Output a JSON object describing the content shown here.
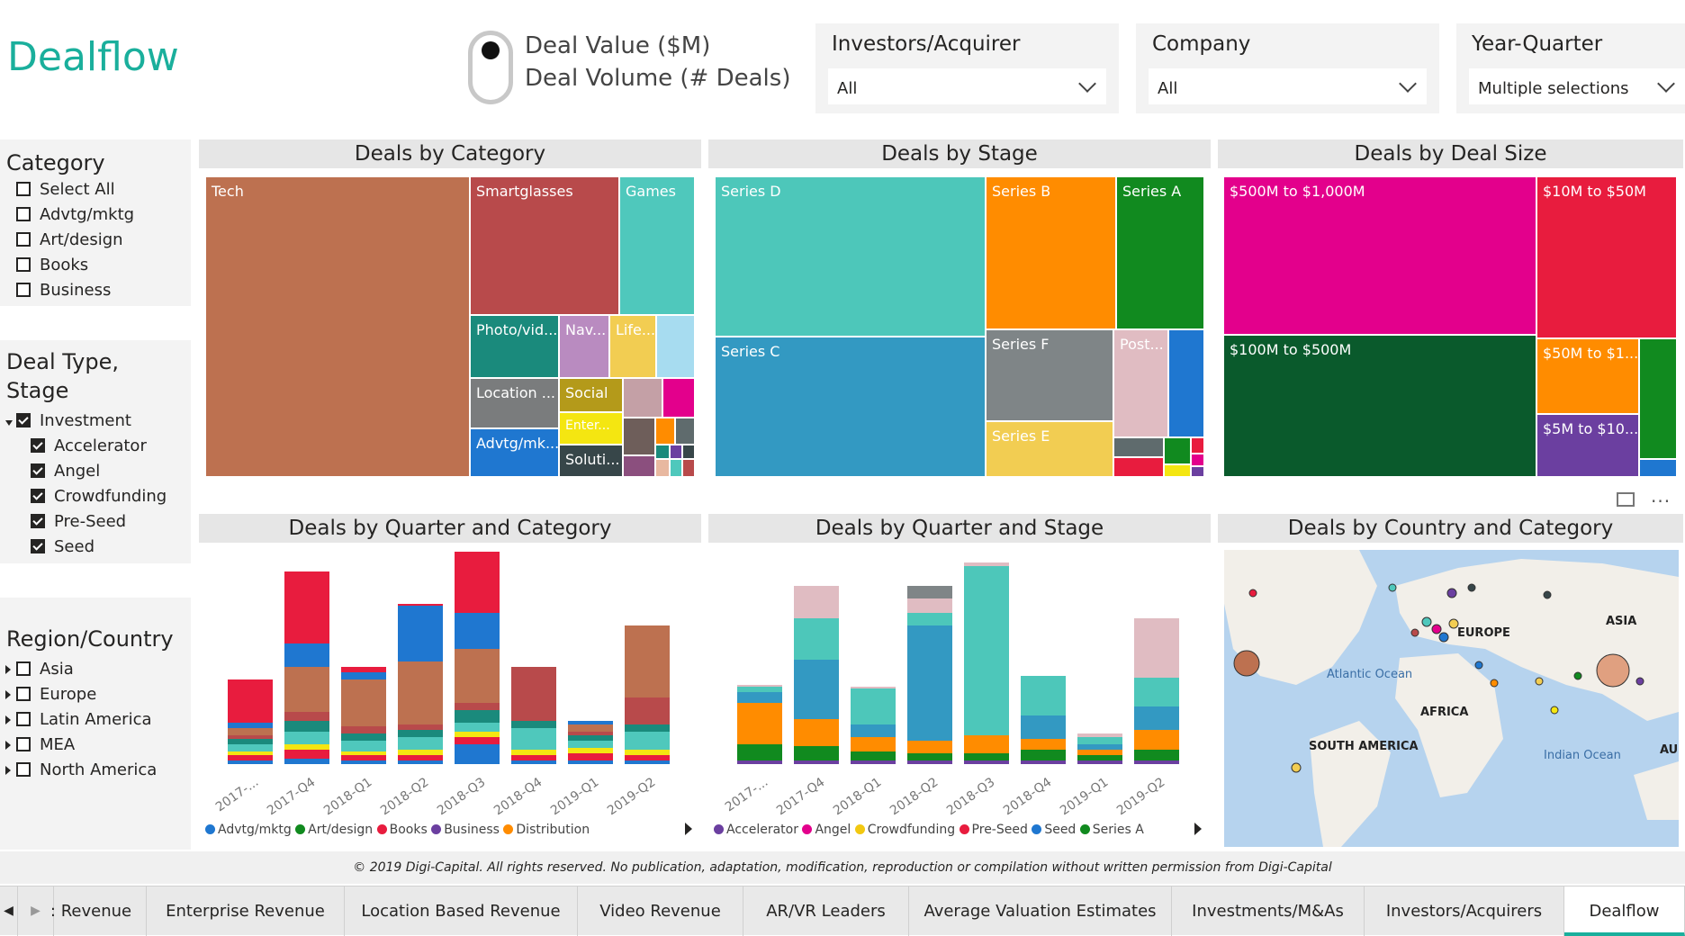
{
  "title": "Dealflow",
  "toggle": {
    "option1": "Deal Value ($M)",
    "option2": "Deal Volume (# Deals)"
  },
  "slicers": [
    {
      "title": "Investors/Acquirer",
      "value": "All"
    },
    {
      "title": "Company",
      "value": "All"
    },
    {
      "title": "Year-Quarter",
      "value": "Multiple selections"
    }
  ],
  "category_panel": {
    "title": "Category",
    "items": [
      "Select All",
      "Advtg/mktg",
      "Art/design",
      "Books",
      "Business"
    ]
  },
  "dealtype_panel": {
    "title_line1": "Deal Type,",
    "title_line2": "Stage",
    "parent": "Investment",
    "items": [
      "Accelerator",
      "Angel",
      "Crowdfunding",
      "Pre-Seed",
      "Seed"
    ]
  },
  "region_panel": {
    "title": "Region/Country",
    "items": [
      "Asia",
      "Europe",
      "Latin America",
      "MEA",
      "North America"
    ]
  },
  "visuals": {
    "deals_by_category": {
      "title": "Deals by Category",
      "labels": [
        "Tech",
        "Smartglasses",
        "Games",
        "Photo/vid...",
        "Nav...",
        "Life...",
        "Location ...",
        "Social",
        "Advtg/mk...",
        "Enter...",
        "Soluti..."
      ]
    },
    "deals_by_stage": {
      "title": "Deals by Stage",
      "labels": [
        "Series D",
        "Series B",
        "Series A",
        "Series C",
        "Series F",
        "Post...",
        "Series E"
      ]
    },
    "deals_by_size": {
      "title": "Deals by Deal Size",
      "labels": [
        "$500M to $1,000M",
        "$10M to $50M",
        "$100M to $500M",
        "$50M to $1...",
        "$5M to $10..."
      ]
    },
    "quarter_category": {
      "title": "Deals by Quarter and Category",
      "quarters": [
        "2017-...",
        "2017-Q4",
        "2018-Q1",
        "2018-Q2",
        "2018-Q3",
        "2018-Q4",
        "2019-Q1",
        "2019-Q2"
      ],
      "legend": [
        {
          "name": "Advtg/mktg",
          "color": "#1f77d0"
        },
        {
          "name": "Art/design",
          "color": "#118a1f"
        },
        {
          "name": "Books",
          "color": "#e81c3e"
        },
        {
          "name": "Business",
          "color": "#6b3fa0"
        },
        {
          "name": "Distribution",
          "color": "#ff8c00"
        }
      ]
    },
    "quarter_stage": {
      "title": "Deals by Quarter and Stage",
      "quarters": [
        "2017-...",
        "2017-Q4",
        "2018-Q1",
        "2018-Q2",
        "2018-Q3",
        "2018-Q4",
        "2019-Q1",
        "2019-Q2"
      ],
      "legend": [
        {
          "name": "Accelerator",
          "color": "#6b3fa0"
        },
        {
          "name": "Angel",
          "color": "#e3008c"
        },
        {
          "name": "Crowdfunding",
          "color": "#f2c811"
        },
        {
          "name": "Pre-Seed",
          "color": "#e81c3e"
        },
        {
          "name": "Seed",
          "color": "#1f77d0"
        },
        {
          "name": "Series A",
          "color": "#118a1f"
        }
      ]
    },
    "map": {
      "title": "Deals by Country and Category",
      "labels": [
        "ASIA",
        "EUROPE",
        "Atlantic Ocean",
        "AFRICA",
        "SOUTH AMERICA",
        "Indian Ocean",
        "AU"
      ]
    }
  },
  "footer": "© 2019 Digi-Capital. All rights reserved. No publication, adaptation, modification, reproduction or compilation without written permission from Digi-Capital",
  "tabs": [
    ": Revenue",
    "Enterprise Revenue",
    "Location Based Revenue",
    "Video Revenue",
    "AR/VR Leaders",
    "Average Valuation Estimates",
    "Investments/M&As",
    "Investors/Acquirers",
    "Dealflow"
  ]
}
